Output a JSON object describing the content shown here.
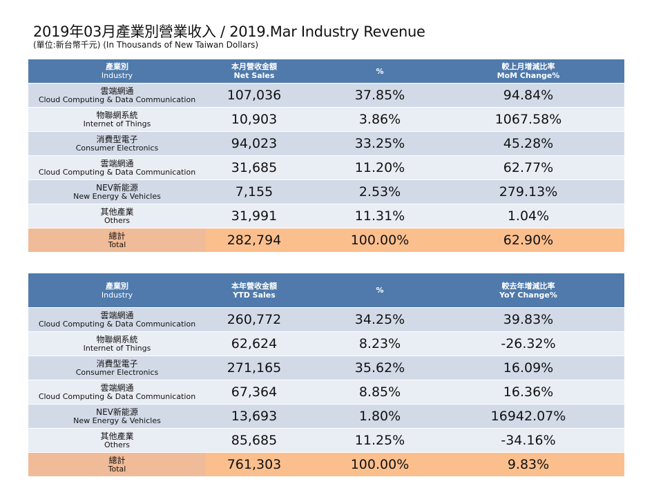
{
  "title": "2019年03月產業別營業收入 / 2019.Mar Industry Revenue",
  "subtitle": "(單位:新台幣千元) (In Thousands of New Taiwan Dollars)",
  "colors": {
    "header": "#4f7aab",
    "row_dark": "#d3dae7",
    "row_light": "#e9edf4",
    "total": "#fbbf8e"
  },
  "monthly": {
    "headers": [
      {
        "zh": "產業別",
        "en": "Industry"
      },
      {
        "zh": "本月營收金額",
        "en": "Net Sales"
      },
      {
        "zh": "",
        "en": "%"
      },
      {
        "zh": "較上月增減比率",
        "en": "MoM Change%"
      }
    ],
    "rows": [
      {
        "zh": "雲端網通",
        "en": "Cloud Computing & Data Communication",
        "sales": "107,036",
        "pct": "37.85%",
        "chg": "94.84%"
      },
      {
        "zh": "物聯網系統",
        "en": "Internet of Things",
        "sales": "10,903",
        "pct": "3.86%",
        "chg": "1067.58%"
      },
      {
        "zh": "消費型電子",
        "en": "Consumer Electronics",
        "sales": "94,023",
        "pct": "33.25%",
        "chg": "45.28%"
      },
      {
        "zh": "雲端網通",
        "en": "Cloud Computing & Data Communication",
        "sales": "31,685",
        "pct": "11.20%",
        "chg": "62.77%"
      },
      {
        "zh": "NEV新能源",
        "en": "New Energy & Vehicles",
        "sales": "7,155",
        "pct": "2.53%",
        "chg": "279.13%"
      },
      {
        "zh": "其他產業",
        "en": "Others",
        "sales": "31,991",
        "pct": "11.31%",
        "chg": "1.04%"
      }
    ],
    "total": {
      "zh": "總計",
      "en": "Total",
      "sales": "282,794",
      "pct": "100.00%",
      "chg": "62.90%"
    }
  },
  "ytd": {
    "headers": [
      {
        "zh": "產業別",
        "en": "Industry"
      },
      {
        "zh": "本年營收金額",
        "en": "YTD Sales"
      },
      {
        "zh": "",
        "en": "%"
      },
      {
        "zh": "較去年增減比率",
        "en": "YoY Change%"
      }
    ],
    "rows": [
      {
        "zh": "雲端網通",
        "en": "Cloud Computing & Data Communication",
        "sales": "260,772",
        "pct": "34.25%",
        "chg": "39.83%"
      },
      {
        "zh": "物聯網系統",
        "en": "Internet of Things",
        "sales": "62,624",
        "pct": "8.23%",
        "chg": "-26.32%"
      },
      {
        "zh": "消費型電子",
        "en": "Consumer Electronics",
        "sales": "271,165",
        "pct": "35.62%",
        "chg": "16.09%"
      },
      {
        "zh": "雲端網通",
        "en": "Cloud Computing & Data Communication",
        "sales": "67,364",
        "pct": "8.85%",
        "chg": "16.36%"
      },
      {
        "zh": "NEV新能源",
        "en": "New Energy & Vehicles",
        "sales": "13,693",
        "pct": "1.80%",
        "chg": "16942.07%"
      },
      {
        "zh": "其他產業",
        "en": "Others",
        "sales": "85,685",
        "pct": "11.25%",
        "chg": "-34.16%"
      }
    ],
    "total": {
      "zh": "總計",
      "en": "Total",
      "sales": "761,303",
      "pct": "100.00%",
      "chg": "9.83%"
    }
  }
}
